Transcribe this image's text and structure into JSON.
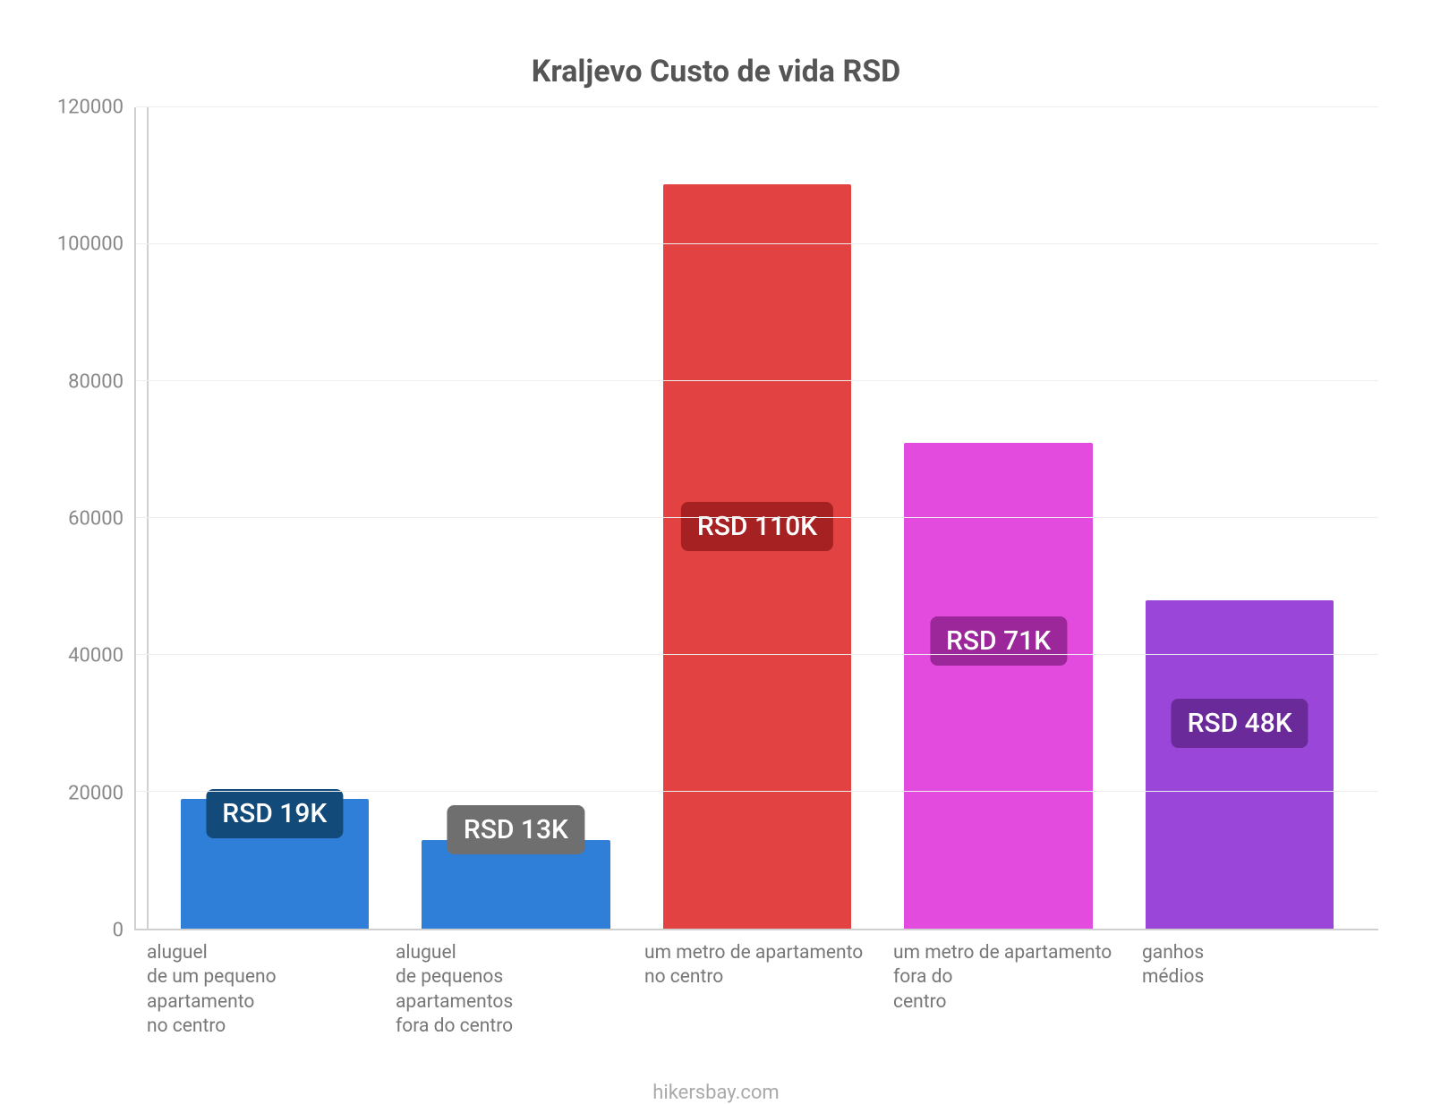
{
  "chart": {
    "type": "bar",
    "title": "Kraljevo Custo de vida RSD",
    "title_fontsize": 34,
    "title_color": "#555555",
    "background_color": "#ffffff",
    "grid_color": "#eeeeee",
    "axis_color": "#d0d0d0",
    "credit": "hikersbay.com",
    "credit_color": "#aaaaaa",
    "y": {
      "min": 0,
      "max": 120000,
      "step": 20000,
      "ticks": [
        0,
        20000,
        40000,
        60000,
        80000,
        100000,
        120000
      ],
      "label_color": "#888888",
      "label_fontsize": 22
    },
    "x_label_color": "#777777",
    "x_label_fontsize": 21,
    "bars": [
      {
        "category_lines": [
          "aluguel",
          "de um pequeno",
          "apartamento",
          "no centro"
        ],
        "value": 19000,
        "value_label": "RSD 19K",
        "bar_color": "#2f7ed8",
        "badge_bg": "#124a7a",
        "badge_top_pct": 83
      },
      {
        "category_lines": [
          "aluguel",
          "de pequenos",
          "apartamentos",
          "fora do centro"
        ],
        "value": 13000,
        "value_label": "RSD 13K",
        "bar_color": "#2f7ed8",
        "badge_bg": "#6f6f6f",
        "badge_top_pct": 85
      },
      {
        "category_lines": [
          "um metro de apartamento",
          "no centro"
        ],
        "value": 108800,
        "value_label": "RSD 110K",
        "bar_color": "#e34242",
        "badge_bg": "#a62121",
        "badge_top_pct": 48
      },
      {
        "category_lines": [
          "um metro de apartamento",
          "fora do",
          "centro"
        ],
        "value": 71000,
        "value_label": "RSD 71K",
        "bar_color": "#e24bdd",
        "badge_bg": "#9b279a",
        "badge_top_pct": 62
      },
      {
        "category_lines": [
          "ganhos",
          "médios"
        ],
        "value": 48000,
        "value_label": "RSD 48K",
        "bar_color": "#9a46d8",
        "badge_bg": "#6a2a9a",
        "badge_top_pct": 72
      }
    ]
  }
}
